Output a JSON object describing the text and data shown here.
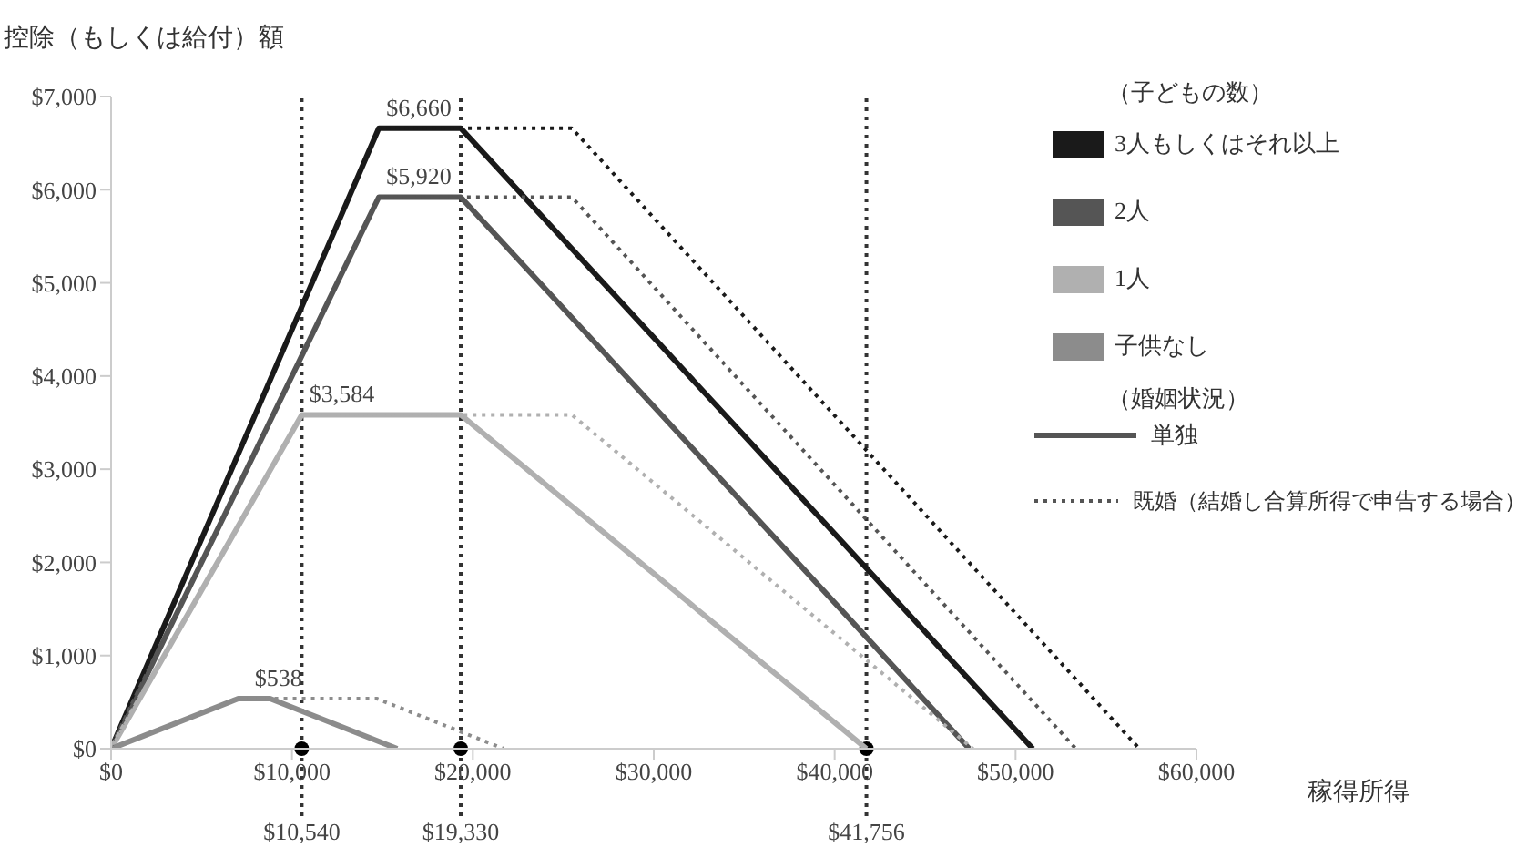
{
  "chart_data": {
    "type": "line",
    "ylabel": "控除（もしくは給付）額",
    "xlabel": "稼得所得",
    "legend_title": "（子どもの数）",
    "legend": "top right",
    "marker": "none",
    "xlim": [
      0,
      60000
    ],
    "xticks": [
      {
        "value": 0,
        "label": "$0"
      },
      {
        "value": 10000,
        "label": "$10,000"
      },
      {
        "value": 20000,
        "label": "$20,000"
      },
      {
        "value": 30000,
        "label": "$30,000"
      },
      {
        "value": 40000,
        "label": "$40,000"
      },
      {
        "value": 50000,
        "label": "$50,000"
      },
      {
        "value": 60000,
        "label": "$60,000"
      }
    ],
    "ylim": [
      0,
      7000
    ],
    "yticks": [
      {
        "value": 0,
        "label": "$0"
      },
      {
        "value": 1000,
        "label": "$1,000"
      },
      {
        "value": 2000,
        "label": "$2,000"
      },
      {
        "value": 3000,
        "label": "$3,000"
      },
      {
        "value": 4000,
        "label": "$4,000"
      },
      {
        "value": 5000,
        "label": "$5,000"
      },
      {
        "value": 6000,
        "label": "$6,000"
      },
      {
        "value": 7000,
        "label": "$7,000"
      }
    ],
    "series": [
      {
        "name": "3人もしくはそれ以上",
        "color": "#1a1a1a",
        "line_style": "solid",
        "x": [
          0,
          14800,
          19330,
          50954
        ],
        "values": [
          0,
          6660,
          6660,
          0
        ],
        "value_labels": [
          null,
          "$6,660",
          null,
          null
        ]
      },
      {
        "name": "2人",
        "color": "#555555",
        "line_style": "solid",
        "x": [
          0,
          14800,
          19330,
          47440
        ],
        "values": [
          0,
          5920,
          5920,
          0
        ],
        "value_labels": [
          null,
          "$5,920",
          null,
          null
        ]
      },
      {
        "name": "1人",
        "color": "#b0b0b0",
        "line_style": "solid",
        "x": [
          0,
          10540,
          19330,
          41756
        ],
        "values": [
          0,
          3584,
          3584,
          0
        ],
        "value_labels": [
          null,
          "$3,584",
          null,
          null
        ]
      },
      {
        "name": "子供なし",
        "color": "#8c8c8c",
        "line_style": "solid",
        "x": [
          0,
          7030,
          8790,
          15820
        ],
        "values": [
          0,
          538,
          538,
          0
        ],
        "value_labels": [
          null,
          "$538",
          null,
          null
        ]
      },
      {
        "color": "#1a1a1a",
        "line_style": "dotted",
        "x": [
          0,
          14800,
          25470,
          56844
        ],
        "values": [
          0,
          6660,
          6660,
          0
        ]
      },
      {
        "color": "#555555",
        "line_style": "dotted",
        "x": [
          0,
          14800,
          25470,
          53330
        ],
        "values": [
          0,
          5920,
          5920,
          0
        ]
      },
      {
        "color": "#b0b0b0",
        "line_style": "dotted",
        "x": [
          0,
          10540,
          25470,
          47646
        ],
        "values": [
          0,
          3584,
          3584,
          0
        ]
      },
      {
        "color": "#8c8c8c",
        "line_style": "dotted",
        "x": [
          0,
          7030,
          14680,
          21710
        ],
        "values": [
          0,
          538,
          538,
          0
        ]
      }
    ],
    "ref_lines": [
      {
        "axis": "x",
        "value": 10540,
        "label": "$10,540",
        "color": "#333333",
        "line_style": "dotted"
      },
      {
        "axis": "x",
        "value": 19330,
        "label": "$19,330",
        "color": "#333333",
        "line_style": "dotted"
      },
      {
        "axis": "x",
        "value": 41756,
        "label": "$41,756",
        "color": "#333333",
        "line_style": "dotted"
      }
    ],
    "annotations": [
      "（婚姻状況）",
      "単独",
      "既婚（結婚し合算所得で申告する場合）"
    ]
  }
}
